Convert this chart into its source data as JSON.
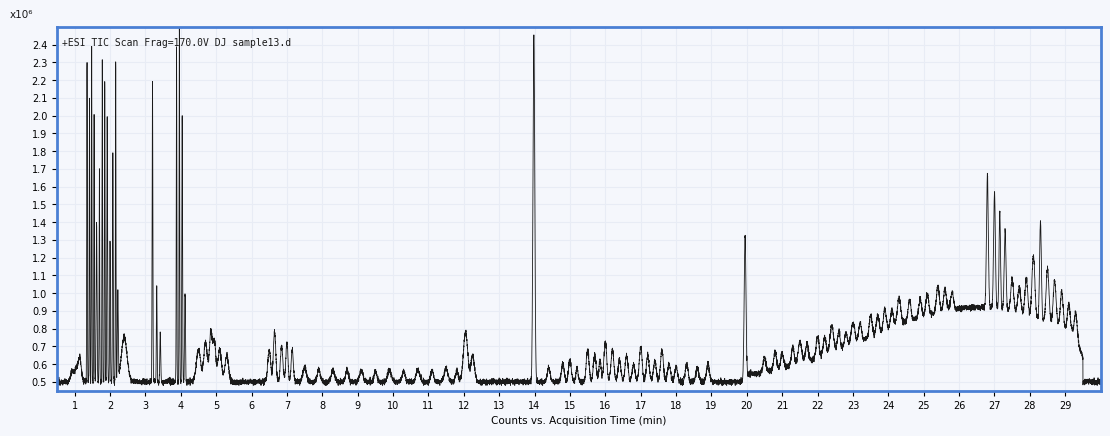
{
  "title_annotation": "+ESI TIC Scan Frag=170.0V DJ sample13.d",
  "xlabel": "Counts vs. Acquisition Time (min)",
  "ylabel": "x10⁶",
  "xmin": 0.5,
  "xmax": 30.0,
  "ymin": 0.45,
  "ymax": 2.5,
  "xticks": [
    1,
    2,
    3,
    4,
    5,
    6,
    7,
    8,
    9,
    10,
    11,
    12,
    13,
    14,
    15,
    16,
    17,
    18,
    19,
    20,
    21,
    22,
    23,
    24,
    25,
    26,
    27,
    28,
    29
  ],
  "yticks": [
    0.5,
    0.6,
    0.7,
    0.8,
    0.9,
    1.0,
    1.1,
    1.2,
    1.3,
    1.4,
    1.5,
    1.6,
    1.7,
    1.8,
    1.9,
    2.0,
    2.1,
    2.2,
    2.3,
    2.4
  ],
  "line_color": "#1a1a1a",
  "background_color": "#f5f7fc",
  "border_color": "#4a7fd4",
  "grid_color": "#e8ecf5",
  "figsize": [
    10.9,
    4.24
  ],
  "dpi": 100
}
